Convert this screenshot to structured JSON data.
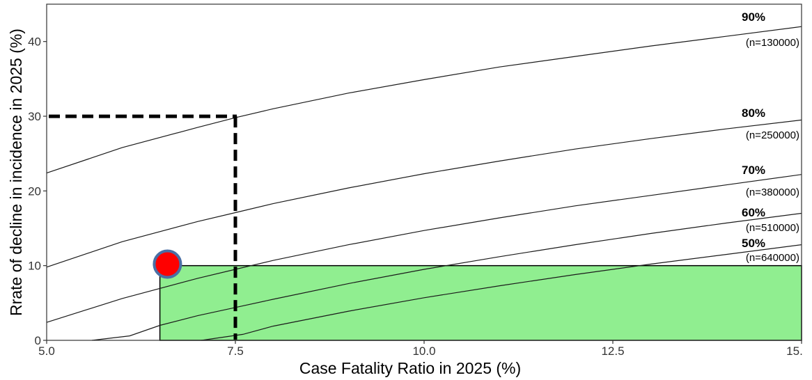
{
  "chart_data": {
    "type": "line",
    "xlabel": "Case Fatality Ratio in 2025 (%)",
    "ylabel": "Rrate of decline in incidence in 2025 (%)",
    "xlim": [
      5.0,
      15.0
    ],
    "ylim": [
      0,
      45
    ],
    "x_ticks": [
      {
        "value": 5.0,
        "label": "5.0"
      },
      {
        "value": 7.5,
        "label": "7.5"
      },
      {
        "value": 10.0,
        "label": "10.0"
      },
      {
        "value": 12.5,
        "label": "12.5"
      },
      {
        "value": 15.0,
        "label": "15."
      }
    ],
    "y_ticks": [
      {
        "value": 0,
        "label": "0"
      },
      {
        "value": 10,
        "label": "10"
      },
      {
        "value": 20,
        "label": "20"
      },
      {
        "value": 30,
        "label": "30"
      },
      {
        "value": 40,
        "label": "40"
      }
    ],
    "grid": false,
    "series": [
      {
        "name": "90%",
        "n_label": "(n=130000)",
        "x": [
          5.0,
          6.0,
          7.0,
          7.5,
          8.0,
          9.0,
          10.0,
          11.0,
          12.0,
          13.0,
          14.0,
          15.0
        ],
        "y": [
          22.4,
          25.8,
          28.5,
          29.8,
          31.0,
          33.1,
          34.9,
          36.6,
          38.0,
          39.4,
          40.7,
          42.0
        ]
      },
      {
        "name": "80%",
        "n_label": "(n=250000)",
        "x": [
          5.0,
          6.0,
          7.0,
          7.5,
          8.0,
          9.0,
          10.0,
          11.0,
          12.0,
          13.0,
          14.0,
          15.0
        ],
        "y": [
          9.8,
          13.2,
          15.9,
          17.1,
          18.3,
          20.4,
          22.3,
          24.0,
          25.6,
          27.0,
          28.3,
          29.5
        ]
      },
      {
        "name": "70%",
        "n_label": "(n=380000)",
        "x": [
          5.0,
          6.0,
          7.0,
          7.5,
          8.0,
          9.0,
          10.0,
          11.0,
          12.0,
          13.0,
          14.0,
          15.0
        ],
        "y": [
          2.4,
          5.6,
          8.3,
          9.5,
          10.7,
          12.8,
          14.7,
          16.4,
          18.0,
          19.4,
          20.8,
          22.2
        ]
      },
      {
        "name": "60%",
        "n_label": "(n=510000)",
        "x": [
          5.6,
          6.1,
          6.5,
          7.0,
          7.5,
          8.0,
          9.0,
          10.0,
          11.0,
          12.0,
          13.0,
          14.0,
          15.0
        ],
        "y": [
          0.0,
          0.6,
          2.0,
          3.3,
          4.4,
          5.5,
          7.6,
          9.5,
          11.2,
          12.8,
          14.3,
          15.7,
          17.0
        ]
      },
      {
        "name": "50%",
        "n_label": "(n=640000)",
        "x": [
          7.05,
          7.6,
          8.0,
          9.0,
          10.0,
          11.0,
          12.0,
          13.0,
          14.0,
          15.0
        ],
        "y": [
          0.0,
          0.8,
          1.9,
          3.9,
          5.7,
          7.3,
          8.8,
          10.2,
          11.5,
          12.8
        ]
      }
    ],
    "target_region": {
      "x_from": 6.5,
      "x_to": 15.0,
      "y_from": 0,
      "y_to": 10,
      "color": "#90ee90"
    },
    "reference_point": {
      "x": 6.6,
      "y": 10.2,
      "fill": "#ff0000",
      "stroke": "#4a6fa5"
    },
    "reference_dashed": {
      "x": 7.5,
      "y": 29.8,
      "color": "#000000"
    }
  }
}
